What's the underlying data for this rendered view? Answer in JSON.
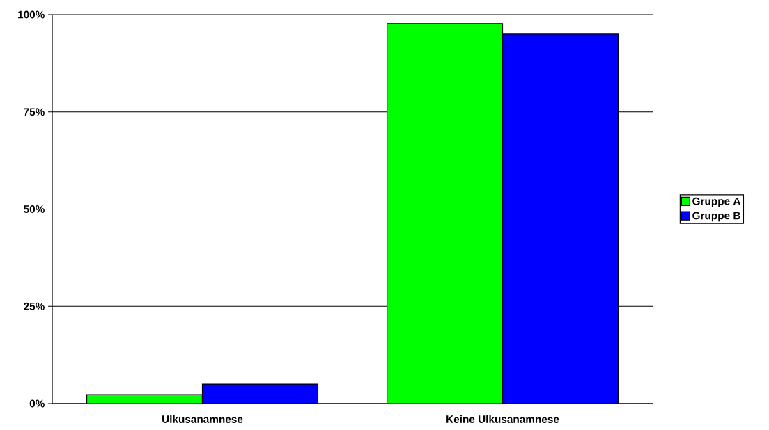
{
  "chart_data": {
    "type": "bar",
    "categories": [
      "Ulkusanamnese",
      "Keine Ulkusanamnese"
    ],
    "series": [
      {
        "name": "Gruppe A",
        "color": "#00ff00",
        "values": [
          2.3,
          97.7
        ]
      },
      {
        "name": "Gruppe B",
        "color": "#0000ff",
        "values": [
          5.0,
          95.0
        ]
      }
    ],
    "ylim": [
      0,
      100
    ],
    "yticks": [
      {
        "value": 0,
        "label": "0%"
      },
      {
        "value": 25,
        "label": "25%"
      },
      {
        "value": 50,
        "label": "50%"
      },
      {
        "value": 75,
        "label": "75%"
      },
      {
        "value": 100,
        "label": "100%"
      }
    ],
    "grid": "y",
    "legend": "right"
  }
}
